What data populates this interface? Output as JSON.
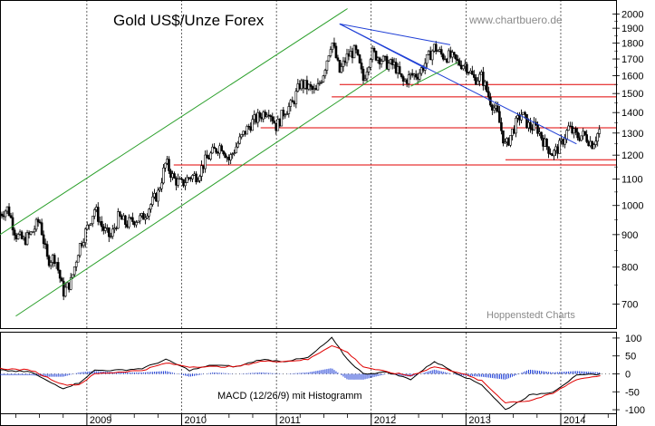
{
  "chart_data": [
    {
      "type": "candlestick",
      "title": "Gold US$/Unze Forex",
      "watermark": "www.chartbuero.de",
      "source_note": "Hoppenstedt Charts",
      "yscale": "log",
      "ylim": [
        650,
        2050
      ],
      "y_ticks": [
        "2000",
        "1900",
        "1800",
        "1700",
        "1600",
        "1500",
        "1400",
        "1300",
        "1200",
        "1100",
        "1000",
        "900",
        "800",
        "700"
      ],
      "x_ticks": [
        "2009",
        "2010",
        "2011",
        "2012",
        "2013",
        "2014"
      ],
      "xlim": [
        "2008-02",
        "2014-08"
      ],
      "price_path": [
        [
          "2008-02",
          970
        ],
        [
          "2008-03",
          990
        ],
        [
          "2008-04",
          900
        ],
        [
          "2008-05",
          880
        ],
        [
          "2008-06",
          905
        ],
        [
          "2008-07",
          950
        ],
        [
          "2008-08",
          820
        ],
        [
          "2008-09",
          830
        ],
        [
          "2008-10",
          730
        ],
        [
          "2008-11",
          760
        ],
        [
          "2008-12",
          860
        ],
        [
          "2009-01",
          920
        ],
        [
          "2009-02",
          990
        ],
        [
          "2009-03",
          920
        ],
        [
          "2009-04",
          890
        ],
        [
          "2009-05",
          960
        ],
        [
          "2009-06",
          935
        ],
        [
          "2009-07",
          950
        ],
        [
          "2009-08",
          955
        ],
        [
          "2009-09",
          1000
        ],
        [
          "2009-10",
          1045
        ],
        [
          "2009-11",
          1170
        ],
        [
          "2009-12",
          1100
        ],
        [
          "2010-01",
          1080
        ],
        [
          "2010-02",
          1110
        ],
        [
          "2010-03",
          1115
        ],
        [
          "2010-04",
          1175
        ],
        [
          "2010-05",
          1215
        ],
        [
          "2010-06",
          1245
        ],
        [
          "2010-07",
          1180
        ],
        [
          "2010-08",
          1245
        ],
        [
          "2010-09",
          1305
        ],
        [
          "2010-10",
          1355
        ],
        [
          "2010-11",
          1385
        ],
        [
          "2010-12",
          1420
        ],
        [
          "2011-01",
          1330
        ],
        [
          "2011-02",
          1410
        ],
        [
          "2011-03",
          1440
        ],
        [
          "2011-04",
          1555
        ],
        [
          "2011-05",
          1535
        ],
        [
          "2011-06",
          1505
        ],
        [
          "2011-07",
          1625
        ],
        [
          "2011-08",
          1820
        ],
        [
          "2011-09",
          1620
        ],
        [
          "2011-10",
          1720
        ],
        [
          "2011-11",
          1750
        ],
        [
          "2011-12",
          1575
        ],
        [
          "2012-01",
          1740
        ],
        [
          "2012-02",
          1710
        ],
        [
          "2012-03",
          1670
        ],
        [
          "2012-04",
          1660
        ],
        [
          "2012-05",
          1560
        ],
        [
          "2012-06",
          1600
        ],
        [
          "2012-07",
          1610
        ],
        [
          "2012-08",
          1690
        ],
        [
          "2012-09",
          1775
        ],
        [
          "2012-10",
          1720
        ],
        [
          "2012-11",
          1715
        ],
        [
          "2012-12",
          1675
        ],
        [
          "2013-01",
          1665
        ],
        [
          "2013-02",
          1580
        ],
        [
          "2013-03",
          1595
        ],
        [
          "2013-04",
          1470
        ],
        [
          "2013-05",
          1390
        ],
        [
          "2013-06",
          1235
        ],
        [
          "2013-07",
          1320
        ],
        [
          "2013-08",
          1395
        ],
        [
          "2013-09",
          1330
        ],
        [
          "2013-10",
          1325
        ],
        [
          "2013-11",
          1250
        ],
        [
          "2013-12",
          1205
        ],
        [
          "2014-01",
          1245
        ],
        [
          "2014-02",
          1325
        ],
        [
          "2014-03",
          1285
        ],
        [
          "2014-04",
          1290
        ],
        [
          "2014-05",
          1250
        ],
        [
          "2014-06",
          1320
        ]
      ],
      "channel_lines": [
        {
          "color": "#2ca02c",
          "from": [
            "2008-02",
            900
          ],
          "to": [
            "2011-10",
            2040
          ]
        },
        {
          "color": "#2ca02c",
          "from": [
            "2008-04",
            670
          ],
          "to": [
            "2012-03",
            1640
          ]
        }
      ],
      "trend_lines": [
        {
          "color": "#1f3fd6",
          "from": [
            "2011-09",
            1930
          ],
          "to": [
            "2012-11",
            1790
          ]
        },
        {
          "color": "#1f3fd6",
          "from": [
            "2011-09",
            1930
          ],
          "to": [
            "2012-08",
            1640
          ]
        },
        {
          "color": "#1f3fd6",
          "from": [
            "2011-09",
            1930
          ],
          "to": [
            "2014-03",
            1250
          ]
        },
        {
          "color": "#2ca02c",
          "from": [
            "2012-06",
            1540
          ],
          "to": [
            "2012-12",
            1680
          ]
        }
      ],
      "horizontal_lines": [
        {
          "color": "#e00000",
          "y": 1550,
          "from": "2011-09",
          "to": "2014-08"
        },
        {
          "color": "#e00000",
          "y": 1482,
          "from": "2011-08",
          "to": "2014-08"
        },
        {
          "color": "#e00000",
          "y": 1325,
          "from": "2010-11",
          "to": "2014-08"
        },
        {
          "color": "#e00000",
          "y": 1180,
          "from": "2013-06",
          "to": "2014-08"
        },
        {
          "color": "#e00000",
          "y": 1158,
          "from": "2009-12",
          "to": "2014-08"
        }
      ]
    },
    {
      "type": "line",
      "title": "MACD (12/26/9) mit Histogramm",
      "ylim": [
        -110,
        115
      ],
      "y_ticks": [
        "100",
        "50",
        "0",
        "-50",
        "-100"
      ],
      "series": [
        {
          "color": "#000000",
          "values": [
            [
              "2008-02",
              10
            ],
            [
              "2008-06",
              5
            ],
            [
              "2008-08",
              -20
            ],
            [
              "2008-10",
              -40
            ],
            [
              "2008-12",
              -25
            ],
            [
              "2009-02",
              10
            ],
            [
              "2009-05",
              10
            ],
            [
              "2009-08",
              15
            ],
            [
              "2009-11",
              40
            ],
            [
              "2010-02",
              10
            ],
            [
              "2010-05",
              25
            ],
            [
              "2010-08",
              20
            ],
            [
              "2010-11",
              40
            ],
            [
              "2011-02",
              35
            ],
            [
              "2011-05",
              45
            ],
            [
              "2011-08",
              100
            ],
            [
              "2011-10",
              40
            ],
            [
              "2011-12",
              0
            ],
            [
              "2012-03",
              5
            ],
            [
              "2012-06",
              -15
            ],
            [
              "2012-09",
              35
            ],
            [
              "2012-12",
              0
            ],
            [
              "2013-03",
              -30
            ],
            [
              "2013-06",
              -100
            ],
            [
              "2013-09",
              -60
            ],
            [
              "2013-12",
              -50
            ],
            [
              "2014-03",
              -5
            ],
            [
              "2014-06",
              0
            ]
          ]
        },
        {
          "color": "#e00000",
          "values": [
            [
              "2008-02",
              15
            ],
            [
              "2008-06",
              10
            ],
            [
              "2008-08",
              -10
            ],
            [
              "2008-10",
              -30
            ],
            [
              "2008-12",
              -30
            ],
            [
              "2009-02",
              0
            ],
            [
              "2009-05",
              5
            ],
            [
              "2009-08",
              10
            ],
            [
              "2009-11",
              30
            ],
            [
              "2010-02",
              20
            ],
            [
              "2010-05",
              20
            ],
            [
              "2010-08",
              20
            ],
            [
              "2010-11",
              35
            ],
            [
              "2011-02",
              35
            ],
            [
              "2011-05",
              40
            ],
            [
              "2011-08",
              80
            ],
            [
              "2011-10",
              60
            ],
            [
              "2011-12",
              20
            ],
            [
              "2012-03",
              5
            ],
            [
              "2012-06",
              -5
            ],
            [
              "2012-09",
              20
            ],
            [
              "2012-12",
              5
            ],
            [
              "2013-03",
              -20
            ],
            [
              "2013-06",
              -80
            ],
            [
              "2013-09",
              -75
            ],
            [
              "2013-12",
              -55
            ],
            [
              "2014-03",
              -15
            ],
            [
              "2014-06",
              -5
            ]
          ]
        }
      ],
      "histogram_color": "#1f3fd6"
    }
  ]
}
